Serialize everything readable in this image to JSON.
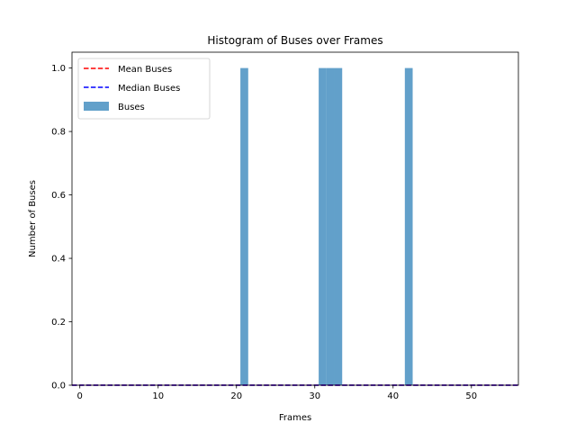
{
  "chart_data": {
    "type": "bar",
    "title": "Histogram of Buses over Frames",
    "xlabel": "Frames",
    "ylabel": "Number of Buses",
    "xlim": [
      -1,
      56
    ],
    "ylim": [
      0,
      1.05
    ],
    "xticks": [
      0,
      10,
      20,
      30,
      40,
      50
    ],
    "yticks": [
      0.0,
      0.2,
      0.4,
      0.6,
      0.8,
      1.0
    ],
    "bar_width": 1,
    "series": [
      {
        "name": "Buses",
        "color": "#1f77b4",
        "opacity": 0.7,
        "x": [
          21,
          31,
          32,
          33,
          42
        ],
        "values": [
          1,
          1,
          1,
          1,
          1
        ]
      }
    ],
    "lines": [
      {
        "name": "Mean Buses",
        "value": 0.0,
        "color": "#ff0000",
        "style": "dashed"
      },
      {
        "name": "Median Buses",
        "value": 0.0,
        "color": "#0000ff",
        "style": "dashed"
      }
    ],
    "grid": false,
    "legend_position": "top-left"
  }
}
